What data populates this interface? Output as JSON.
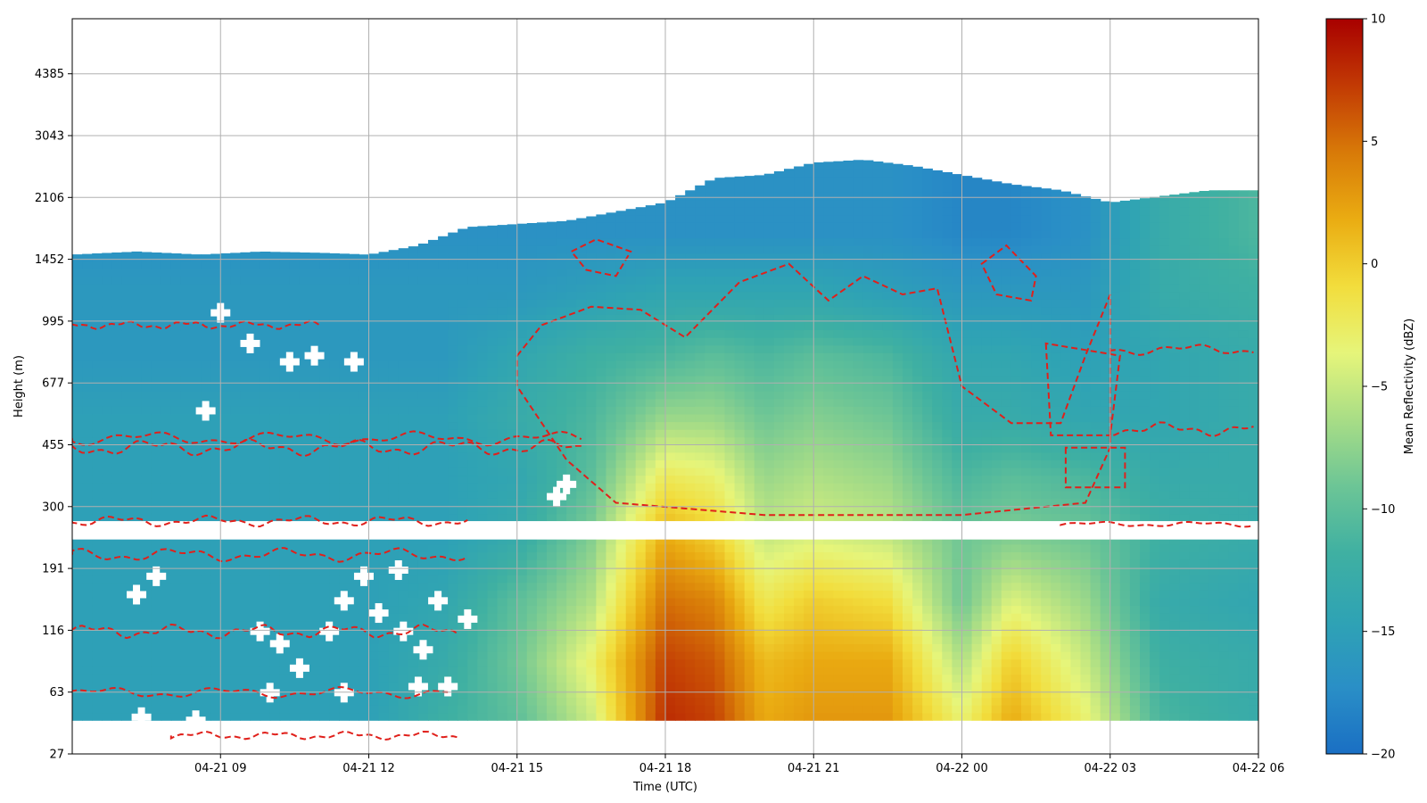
{
  "chart_data": {
    "type": "heatmap",
    "title": "",
    "xlabel": "Time (UTC)",
    "ylabel": "Height (m)",
    "colorbar_label": "Mean Reflectivity (dBZ)",
    "x_tick_labels": [
      "04-21 09",
      "04-21 12",
      "04-21 15",
      "04-21 18",
      "04-21 21",
      "04-22 00",
      "04-22 03",
      "04-22 06"
    ],
    "x_tick_hours": [
      9,
      12,
      15,
      18,
      21,
      24,
      27,
      30
    ],
    "xlim_hours": [
      6,
      30
    ],
    "y_tick_labels": [
      "27",
      "63",
      "116",
      "191",
      "300",
      "455",
      "677",
      "995",
      "1452",
      "2106",
      "3043",
      "4385"
    ],
    "ylim_index": [
      0,
      12
    ],
    "colorbar": {
      "min": -20,
      "max": 10,
      "ticks": [
        "10",
        "5",
        "0",
        "−5",
        "−10",
        "−15",
        "−20"
      ],
      "tick_values": [
        10,
        5,
        0,
        -5,
        -10,
        -15,
        -20
      ]
    },
    "colormap": [
      "#1a6fc4",
      "#2a8fc6",
      "#2fa3b4",
      "#3fb0a2",
      "#6cc596",
      "#a8dd86",
      "#e6f57a",
      "#f2dd3c",
      "#eaac12",
      "#d87a08",
      "#c23a04",
      "#a80000"
    ],
    "grid": true,
    "contour_color": "#e0201b",
    "data_gap_height_index": [
      3.5,
      3.8
    ],
    "cloud_top_index": [
      [
        6.0,
        8.15
      ],
      [
        7.3,
        8.2
      ],
      [
        8.6,
        8.15
      ],
      [
        9.8,
        8.2
      ],
      [
        11.0,
        8.18
      ],
      [
        12.0,
        8.15
      ],
      [
        13.0,
        8.3
      ],
      [
        14.0,
        8.6
      ],
      [
        15.0,
        8.65
      ],
      [
        16.0,
        8.7
      ],
      [
        17.0,
        8.85
      ],
      [
        18.0,
        9.0
      ],
      [
        19.0,
        9.4
      ],
      [
        20.0,
        9.45
      ],
      [
        21.0,
        9.65
      ],
      [
        22.0,
        9.7
      ],
      [
        23.0,
        9.6
      ],
      [
        24.0,
        9.45
      ],
      [
        25.0,
        9.3
      ],
      [
        26.0,
        9.2
      ],
      [
        27.0,
        9.0
      ],
      [
        28.0,
        9.1
      ],
      [
        29.0,
        9.2
      ],
      [
        30.0,
        9.2
      ]
    ],
    "reflectivity_profiles": [
      {
        "time_hours": 6,
        "dBZ": [
          -15,
          -15,
          -15,
          -15,
          -15,
          -15,
          -16,
          -16,
          -17
        ]
      },
      {
        "time_hours": 9,
        "dBZ": [
          -15,
          -15,
          -15,
          -15,
          -15,
          -15,
          -16,
          -16,
          -17
        ]
      },
      {
        "time_hours": 12,
        "dBZ": [
          -15,
          -15,
          -15,
          -15,
          -15,
          -15,
          -16,
          -16,
          -17
        ]
      },
      {
        "time_hours": 13.5,
        "dBZ": [
          -12,
          -13,
          -14,
          -15,
          -15,
          -15,
          -16,
          -16,
          -17
        ]
      },
      {
        "time_hours": 15,
        "dBZ": [
          -10,
          -9,
          -10,
          -13,
          -14,
          -13,
          -14,
          -16,
          -17
        ]
      },
      {
        "time_hours": 16.5,
        "dBZ": [
          -5,
          -3,
          -6,
          -8,
          -10,
          -11,
          -12,
          -15,
          -17
        ]
      },
      {
        "time_hours": 18,
        "dBZ": [
          8,
          7,
          5,
          2,
          -2,
          -7,
          -11,
          -14,
          -17
        ]
      },
      {
        "time_hours": 19,
        "dBZ": [
          7,
          6,
          4,
          0,
          -3,
          -7,
          -10,
          -14,
          -17
        ]
      },
      {
        "time_hours": 20,
        "dBZ": [
          2,
          1,
          -2,
          -5,
          -7,
          -9,
          -11,
          -14,
          -17
        ]
      },
      {
        "time_hours": 21,
        "dBZ": [
          3,
          2,
          0,
          -4,
          -6,
          -8,
          -10,
          -14,
          -17
        ]
      },
      {
        "time_hours": 22.5,
        "dBZ": [
          3,
          2,
          -1,
          -5,
          -7,
          -9,
          -11,
          -15,
          -17
        ]
      },
      {
        "time_hours": 24,
        "dBZ": [
          -3,
          -6,
          -9,
          -9,
          -11,
          -13,
          -14,
          -16,
          -18
        ]
      },
      {
        "time_hours": 25,
        "dBZ": [
          2,
          0,
          -4,
          -8,
          -10,
          -13,
          -14,
          -16,
          -18
        ]
      },
      {
        "time_hours": 26.5,
        "dBZ": [
          -3,
          -5,
          -7,
          -9,
          -11,
          -14,
          -15,
          -16,
          -17
        ]
      },
      {
        "time_hours": 28,
        "dBZ": [
          -11,
          -12,
          -13,
          -12,
          -13,
          -14,
          -14,
          -13,
          -13
        ]
      },
      {
        "time_hours": 30,
        "dBZ": [
          -13,
          -13,
          -14,
          -13,
          -13,
          -13,
          -13,
          -12,
          -11
        ]
      }
    ],
    "dropout_markers": [
      {
        "time_hours": 9.0,
        "height_index": 7.2
      },
      {
        "time_hours": 9.6,
        "height_index": 6.7
      },
      {
        "time_hours": 10.4,
        "height_index": 6.4
      },
      {
        "time_hours": 10.9,
        "height_index": 6.5
      },
      {
        "time_hours": 11.7,
        "height_index": 6.4
      },
      {
        "time_hours": 8.7,
        "height_index": 5.6
      },
      {
        "time_hours": 7.3,
        "height_index": 2.6
      },
      {
        "time_hours": 7.7,
        "height_index": 2.9
      },
      {
        "time_hours": 9.8,
        "height_index": 2.0
      },
      {
        "time_hours": 10.2,
        "height_index": 1.8
      },
      {
        "time_hours": 10.6,
        "height_index": 1.4
      },
      {
        "time_hours": 11.2,
        "height_index": 2.0
      },
      {
        "time_hours": 11.5,
        "height_index": 2.5
      },
      {
        "time_hours": 11.9,
        "height_index": 2.9
      },
      {
        "time_hours": 12.2,
        "height_index": 2.3
      },
      {
        "time_hours": 12.6,
        "height_index": 3.0
      },
      {
        "time_hours": 12.7,
        "height_index": 2.0
      },
      {
        "time_hours": 13.1,
        "height_index": 1.7
      },
      {
        "time_hours": 13.4,
        "height_index": 2.5
      },
      {
        "time_hours": 13.0,
        "height_index": 1.1
      },
      {
        "time_hours": 13.6,
        "height_index": 1.1
      },
      {
        "time_hours": 14.0,
        "height_index": 2.2
      },
      {
        "time_hours": 10.0,
        "height_index": 1.0
      },
      {
        "time_hours": 11.5,
        "height_index": 1.0
      },
      {
        "time_hours": 7.4,
        "height_index": 0.6
      },
      {
        "time_hours": 8.5,
        "height_index": 0.55
      },
      {
        "time_hours": 15.8,
        "height_index": 4.2
      },
      {
        "time_hours": 16.0,
        "height_index": 4.4
      }
    ]
  }
}
